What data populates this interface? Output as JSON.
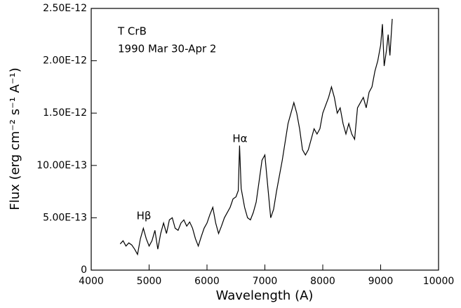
{
  "chart_data": {
    "type": "line",
    "xlabel": "Wavelength (A)",
    "ylabel": "Flux (erg cm⁻² s⁻¹ A⁻¹)",
    "annotations": [
      "T CrB",
      "1990 Mar 30-Apr 2",
      "Hα",
      "Hβ"
    ],
    "xlim": [
      4000,
      10000
    ],
    "xticks": [
      4000,
      5000,
      6000,
      7000,
      8000,
      9000,
      10000
    ],
    "ylim": [
      0,
      2.5e-12
    ],
    "yticks": [
      0,
      {
        "value": 5e-13,
        "label": "5.00E-13"
      },
      {
        "value": 1e-12,
        "label": "10.00E-13"
      },
      {
        "value": 1.5e-12,
        "label": "1.50E-12"
      },
      {
        "value": 2e-12,
        "label": "2.00E-12"
      },
      {
        "value": 2.5e-12,
        "label": "2.50E-12"
      }
    ],
    "color": "#000000",
    "x": [
      4500,
      4550,
      4600,
      4650,
      4700,
      4750,
      4800,
      4850,
      4900,
      4950,
      5000,
      5050,
      5100,
      5150,
      5200,
      5250,
      5300,
      5350,
      5400,
      5450,
      5500,
      5550,
      5600,
      5650,
      5700,
      5750,
      5800,
      5850,
      5900,
      5950,
      6000,
      6050,
      6100,
      6150,
      6200,
      6250,
      6300,
      6350,
      6400,
      6450,
      6500,
      6540,
      6563,
      6590,
      6650,
      6700,
      6750,
      6800,
      6850,
      6900,
      6950,
      7000,
      7050,
      7100,
      7150,
      7200,
      7300,
      7400,
      7500,
      7550,
      7600,
      7650,
      7700,
      7750,
      7800,
      7850,
      7900,
      7950,
      8000,
      8100,
      8150,
      8200,
      8250,
      8300,
      8350,
      8400,
      8450,
      8500,
      8550,
      8600,
      8650,
      8700,
      8750,
      8800,
      8850,
      8900,
      8950,
      9000,
      9030,
      9060,
      9100,
      9130,
      9160,
      9200
    ],
    "values": [
      2.5e-13,
      2.8e-13,
      2.3e-13,
      2.6e-13,
      2.4e-13,
      2e-13,
      1.5e-13,
      3e-13,
      4e-13,
      3e-13,
      2.3e-13,
      2.8e-13,
      3.8e-13,
      2e-13,
      3.5e-13,
      4.5e-13,
      3.5e-13,
      4.8e-13,
      5e-13,
      4e-13,
      3.8e-13,
      4.5e-13,
      4.8e-13,
      4.2e-13,
      4.6e-13,
      4e-13,
      3e-13,
      2.3e-13,
      3.2e-13,
      4e-13,
      4.5e-13,
      5.3e-13,
      6e-13,
      4.5e-13,
      3.5e-13,
      4.2e-13,
      5e-13,
      5.5e-13,
      6e-13,
      6.8e-13,
      7e-13,
      7.6e-13,
      1.19e-12,
      7.8e-13,
      6e-13,
      5e-13,
      4.8e-13,
      5.5e-13,
      6.5e-13,
      8.5e-13,
      1.05e-12,
      1.1e-12,
      8e-13,
      5e-13,
      5.8e-13,
      7.5e-13,
      1.05e-12,
      1.4e-12,
      1.6e-12,
      1.5e-12,
      1.35e-12,
      1.15e-12,
      1.1e-12,
      1.15e-12,
      1.25e-12,
      1.35e-12,
      1.3e-12,
      1.35e-12,
      1.5e-12,
      1.65e-12,
      1.75e-12,
      1.65e-12,
      1.5e-12,
      1.55e-12,
      1.4e-12,
      1.3e-12,
      1.4e-12,
      1.3e-12,
      1.25e-12,
      1.55e-12,
      1.6e-12,
      1.65e-12,
      1.55e-12,
      1.7e-12,
      1.75e-12,
      1.9e-12,
      2e-12,
      2.15e-12,
      2.35e-12,
      1.95e-12,
      2.1e-12,
      2.25e-12,
      2.05e-12,
      2.4e-12
    ]
  }
}
